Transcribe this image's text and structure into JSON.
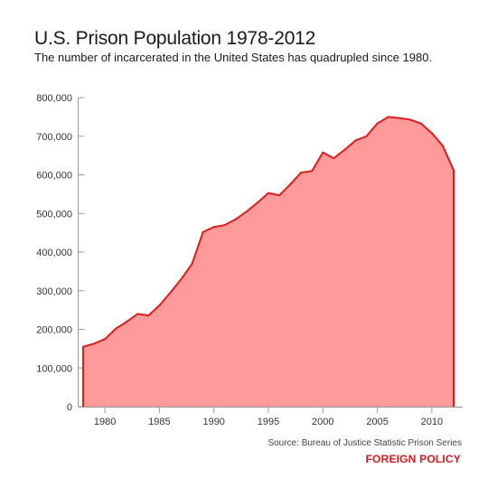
{
  "header": {
    "title": "U.S. Prison Population 1978-2012",
    "subtitle": "The number of incarcerated in the United States has quadrupled since 1980."
  },
  "footer": {
    "source": "Source: Bureau of Justice Statistic Prison Series",
    "brand": "FOREIGN POLICY"
  },
  "colors": {
    "fill": "#ff9a9a",
    "stroke": "#dd1c1c",
    "axis": "#999999",
    "brand": "#d9191f"
  },
  "chart_data": {
    "type": "area",
    "title": "U.S. Prison Population 1978-2012",
    "xlabel": "",
    "ylabel": "",
    "grid": false,
    "legend": "none",
    "xlim": [
      1978,
      2013
    ],
    "ylim": [
      0,
      800000
    ],
    "x_ticks": [
      1980,
      1985,
      1990,
      1995,
      2000,
      2005,
      2010
    ],
    "y_ticks": [
      0,
      100000,
      200000,
      300000,
      400000,
      500000,
      600000,
      700000,
      800000
    ],
    "y_tick_labels": [
      "0",
      "100,000",
      "200,000",
      "300,000",
      "400,000",
      "500,000",
      "600,000",
      "700,000",
      "800,000"
    ],
    "series": [
      {
        "x": [
          1978,
          1979,
          1980,
          1981,
          1982,
          1983,
          1984,
          1985,
          1986,
          1987,
          1988,
          1989,
          1990,
          1991,
          1992,
          1993,
          1994,
          1995,
          1996,
          1997,
          1998,
          1999,
          2000,
          2001,
          2002,
          2003,
          2004,
          2005,
          2006,
          2007,
          2008,
          2009,
          2010,
          2011,
          2012
        ],
        "values": [
          155000,
          163000,
          175000,
          202000,
          220000,
          240000,
          236000,
          262000,
          295000,
          330000,
          370000,
          452000,
          465000,
          470000,
          485000,
          505000,
          528000,
          553000,
          547000,
          575000,
          606000,
          610000,
          658000,
          643000,
          665000,
          689000,
          700000,
          733000,
          750000,
          747000,
          743000,
          733000,
          708000,
          675000,
          612000
        ]
      }
    ]
  }
}
